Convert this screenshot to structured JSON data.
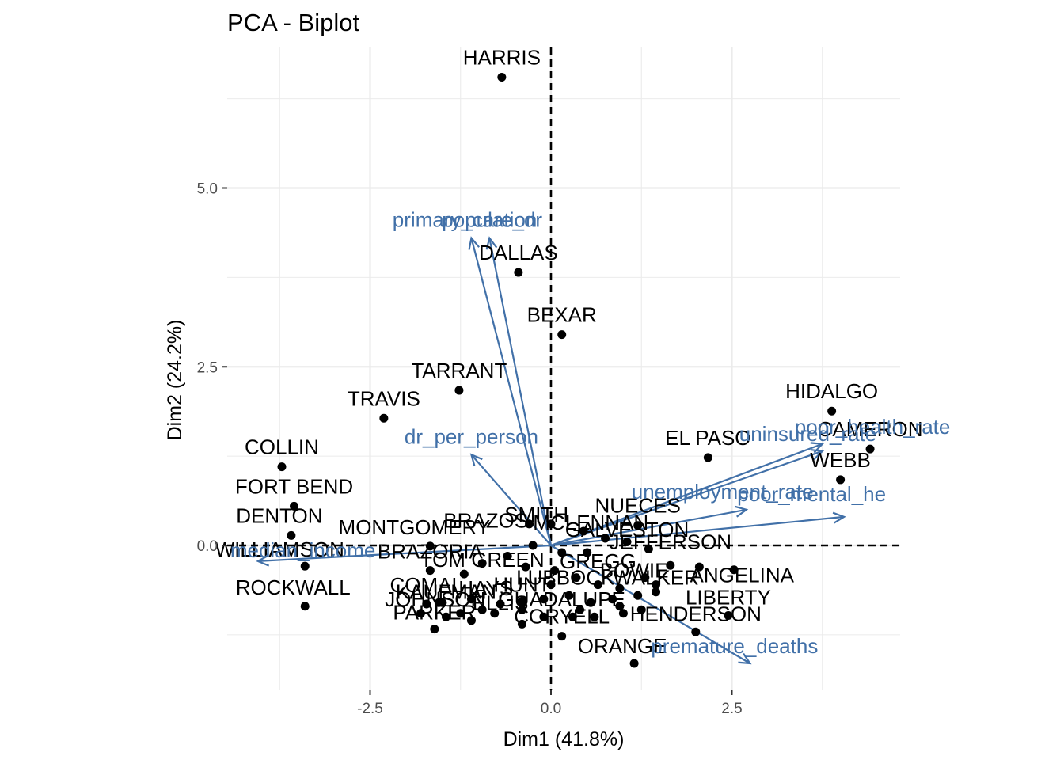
{
  "chart_data": {
    "type": "scatter",
    "title": "PCA - Biplot",
    "xlabel": "Dim1 (41.8%)",
    "ylabel": "Dim2 (24.2%)",
    "xlim": [
      -4.4,
      4.9
    ],
    "ylim": [
      -2.0,
      7.0
    ],
    "x_ticks": [
      -2.5,
      0.0,
      2.5
    ],
    "y_ticks": [
      0.0,
      2.5,
      5.0
    ],
    "x_tick_labels": [
      "-2.5",
      "0.0",
      "2.5"
    ],
    "y_tick_labels": [
      "0.0",
      "2.5",
      "5.0"
    ],
    "grid": true,
    "reference_lines": {
      "x": 0,
      "y": 0,
      "style": "dashed"
    },
    "colors": {
      "points": "#000000",
      "variables": "#4170a8",
      "grid": "#ebebeb",
      "background": "#ffffff"
    },
    "points": [
      {
        "label": "HARRIS",
        "x": -0.68,
        "y": 6.55
      },
      {
        "label": "DALLAS",
        "x": -0.45,
        "y": 3.82
      },
      {
        "label": "BEXAR",
        "x": 0.15,
        "y": 2.95
      },
      {
        "label": "TARRANT",
        "x": -1.27,
        "y": 2.17
      },
      {
        "label": "TRAVIS",
        "x": -2.31,
        "y": 1.78
      },
      {
        "label": "COLLIN",
        "x": -3.72,
        "y": 1.1
      },
      {
        "label": "FORT BEND",
        "x": -3.55,
        "y": 0.55
      },
      {
        "label": "DENTON",
        "x": -3.59,
        "y": 0.14
      },
      {
        "label": "WILLIAMSON",
        "x": -3.4,
        "y": -0.29
      },
      {
        "label": "ROCKWALL",
        "x": -3.4,
        "y": -0.85
      },
      {
        "label": "MONTGOMERY",
        "x": -1.67,
        "y": -0.01
      },
      {
        "label": "BRAZORIA",
        "x": -1.67,
        "y": -0.35
      },
      {
        "label": "COMAL",
        "x": -1.72,
        "y": -0.82
      },
      {
        "label": "PARKER",
        "x": -1.61,
        "y": -1.17
      },
      {
        "label": "HIDALGO",
        "x": 3.88,
        "y": 1.88
      },
      {
        "label": "CAMERON",
        "x": 4.41,
        "y": 1.35
      },
      {
        "label": "WEBB",
        "x": 4.0,
        "y": 0.92
      },
      {
        "label": "EL PASO",
        "x": 2.17,
        "y": 1.23
      },
      {
        "label": "NUECES",
        "x": 1.2,
        "y": 0.28
      },
      {
        "label": "ANGELINA",
        "x": 2.53,
        "y": -0.34
      },
      {
        "label": "LIBERTY",
        "x": 2.45,
        "y": -0.98
      },
      {
        "label": "HENDERSON",
        "x": 2.0,
        "y": -1.21
      },
      {
        "label": "ORANGE",
        "x": 1.15,
        "y": -1.65
      },
      {
        "label": "CORYELL",
        "x": 0.15,
        "y": -1.27
      }
    ],
    "cluster_labels": [
      "BRAZOS",
      "SMITH",
      "MCLENNAN",
      "GALVESTON",
      "JEFFERSON",
      "TOM GREEN",
      "GREGG",
      "BOWIE",
      "WALKER",
      "LUBBOCK",
      "HAYS",
      "HUNT",
      "KAUFMAN",
      "JOHNSON",
      "ELLIS",
      "GUADALUPE"
    ],
    "variables": [
      {
        "name": "primary_care_dr",
        "x": -1.1,
        "y": 4.3
      },
      {
        "name": "population",
        "x": -0.85,
        "y": 4.3
      },
      {
        "name": "dr_per_person",
        "x": -1.1,
        "y": 1.27
      },
      {
        "name": "poor_health_rate",
        "x": 3.75,
        "y": 1.42
      },
      {
        "name": "uninsured_rate",
        "x": 3.75,
        "y": 1.32
      },
      {
        "name": "unemployment_rate",
        "x": 2.7,
        "y": 0.5
      },
      {
        "name": "poor_mental_health",
        "x": 4.05,
        "y": 0.4
      },
      {
        "name": "premature_deaths",
        "x": 2.75,
        "y": -1.65
      },
      {
        "name": "median_income",
        "x": -4.05,
        "y": -0.22
      }
    ],
    "variable_label_texts": {
      "primary_care_dr": "primary_care_dr",
      "population": "population",
      "dr_per_person": "dr_per_person",
      "poor_health_rate": "poor_health_rate",
      "uninsured_rate": "uninsured_rate",
      "unemployment_rate": "unemployment_rate",
      "poor_mental_health": "poor_mental_he",
      "premature_deaths": "premature_deaths",
      "median_income": "median_income"
    }
  }
}
